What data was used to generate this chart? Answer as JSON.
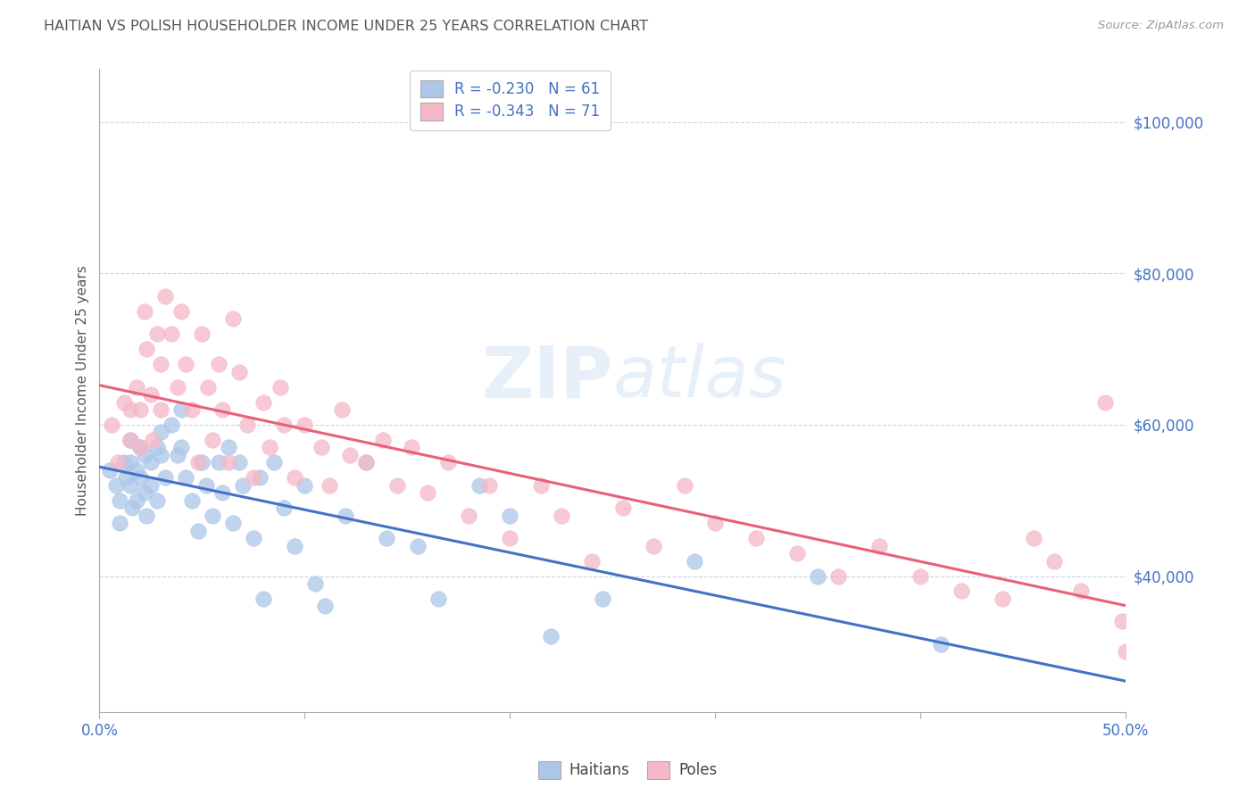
{
  "title": "HAITIAN VS POLISH HOUSEHOLDER INCOME UNDER 25 YEARS CORRELATION CHART",
  "source": "Source: ZipAtlas.com",
  "ylabel": "Householder Income Under 25 years",
  "watermark": "ZIPatlas",
  "legend_blue_r": "R = -0.230",
  "legend_blue_n": "N = 61",
  "legend_pink_r": "R = -0.343",
  "legend_pink_n": "N = 71",
  "blue_color": "#adc6e8",
  "pink_color": "#f5b8c8",
  "blue_line_color": "#4472c4",
  "pink_line_color": "#e8607a",
  "axis_label_color": "#4472c4",
  "title_color": "#555555",
  "grid_color": "#c8d4e8",
  "background_color": "#ffffff",
  "xlim": [
    0.0,
    0.5
  ],
  "ylim": [
    22000,
    107000
  ],
  "yticks": [
    40000,
    60000,
    80000,
    100000
  ],
  "ytick_labels": [
    "$40,000",
    "$60,000",
    "$80,000",
    "$100,000"
  ],
  "haitian_x": [
    0.005,
    0.008,
    0.01,
    0.01,
    0.012,
    0.013,
    0.015,
    0.015,
    0.015,
    0.016,
    0.018,
    0.018,
    0.02,
    0.02,
    0.022,
    0.022,
    0.023,
    0.025,
    0.025,
    0.028,
    0.028,
    0.03,
    0.03,
    0.032,
    0.035,
    0.038,
    0.04,
    0.04,
    0.042,
    0.045,
    0.048,
    0.05,
    0.052,
    0.055,
    0.058,
    0.06,
    0.063,
    0.065,
    0.068,
    0.07,
    0.075,
    0.078,
    0.08,
    0.085,
    0.09,
    0.095,
    0.1,
    0.105,
    0.11,
    0.12,
    0.13,
    0.14,
    0.155,
    0.165,
    0.185,
    0.2,
    0.22,
    0.245,
    0.29,
    0.35,
    0.41
  ],
  "haitian_y": [
    54000,
    52000,
    50000,
    47000,
    55000,
    53000,
    58000,
    55000,
    52000,
    49000,
    54000,
    50000,
    57000,
    53000,
    56000,
    51000,
    48000,
    55000,
    52000,
    57000,
    50000,
    59000,
    56000,
    53000,
    60000,
    56000,
    62000,
    57000,
    53000,
    50000,
    46000,
    55000,
    52000,
    48000,
    55000,
    51000,
    57000,
    47000,
    55000,
    52000,
    45000,
    53000,
    37000,
    55000,
    49000,
    44000,
    52000,
    39000,
    36000,
    48000,
    55000,
    45000,
    44000,
    37000,
    52000,
    48000,
    32000,
    37000,
    42000,
    40000,
    31000
  ],
  "polish_x": [
    0.006,
    0.009,
    0.012,
    0.015,
    0.015,
    0.018,
    0.02,
    0.02,
    0.022,
    0.023,
    0.025,
    0.026,
    0.028,
    0.03,
    0.03,
    0.032,
    0.035,
    0.038,
    0.04,
    0.042,
    0.045,
    0.048,
    0.05,
    0.053,
    0.055,
    0.058,
    0.06,
    0.063,
    0.065,
    0.068,
    0.072,
    0.075,
    0.08,
    0.083,
    0.088,
    0.09,
    0.095,
    0.1,
    0.108,
    0.112,
    0.118,
    0.122,
    0.13,
    0.138,
    0.145,
    0.152,
    0.16,
    0.17,
    0.18,
    0.19,
    0.2,
    0.215,
    0.225,
    0.24,
    0.255,
    0.27,
    0.285,
    0.3,
    0.32,
    0.34,
    0.36,
    0.38,
    0.4,
    0.42,
    0.44,
    0.455,
    0.465,
    0.478,
    0.49,
    0.498,
    0.5
  ],
  "polish_y": [
    60000,
    55000,
    63000,
    62000,
    58000,
    65000,
    62000,
    57000,
    75000,
    70000,
    64000,
    58000,
    72000,
    68000,
    62000,
    77000,
    72000,
    65000,
    75000,
    68000,
    62000,
    55000,
    72000,
    65000,
    58000,
    68000,
    62000,
    55000,
    74000,
    67000,
    60000,
    53000,
    63000,
    57000,
    65000,
    60000,
    53000,
    60000,
    57000,
    52000,
    62000,
    56000,
    55000,
    58000,
    52000,
    57000,
    51000,
    55000,
    48000,
    52000,
    45000,
    52000,
    48000,
    42000,
    49000,
    44000,
    52000,
    47000,
    45000,
    43000,
    40000,
    44000,
    40000,
    38000,
    37000,
    45000,
    42000,
    38000,
    63000,
    34000,
    30000
  ]
}
